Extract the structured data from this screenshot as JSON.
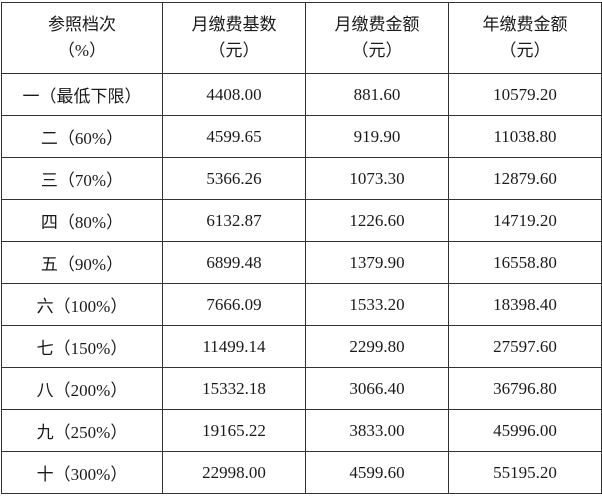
{
  "table": {
    "header": [
      [
        "参照档次",
        "（%）"
      ],
      [
        "月缴费基数",
        "（元）"
      ],
      [
        "月缴费金额",
        "（元）"
      ],
      [
        "年缴费金额",
        "（元）"
      ]
    ],
    "rows": [
      [
        "一（最低下限）",
        "4408.00",
        "881.60",
        "10579.20"
      ],
      [
        "二（60%）",
        "4599.65",
        "919.90",
        "11038.80"
      ],
      [
        "三（70%）",
        "5366.26",
        "1073.30",
        "12879.60"
      ],
      [
        "四（80%）",
        "6132.87",
        "1226.60",
        "14719.20"
      ],
      [
        "五（90%）",
        "6899.48",
        "1379.90",
        "16558.80"
      ],
      [
        "六（100%）",
        "7666.09",
        "1533.20",
        "18398.40"
      ],
      [
        "七（150%）",
        "11499.14",
        "2299.80",
        "27597.60"
      ],
      [
        "八（200%）",
        "15332.18",
        "3066.40",
        "36796.80"
      ],
      [
        "九（250%）",
        "19165.22",
        "3833.00",
        "45996.00"
      ],
      [
        "十（300%）",
        "22998.00",
        "4599.60",
        "55195.20"
      ]
    ]
  }
}
